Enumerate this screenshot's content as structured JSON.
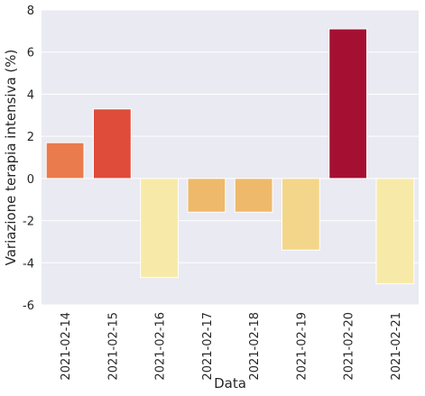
{
  "chart_data": {
    "type": "bar",
    "xlabel": "Data",
    "ylabel": "Variazione terapia intensiva (%)",
    "categories": [
      "2021-02-14",
      "2021-02-15",
      "2021-02-16",
      "2021-02-17",
      "2021-02-18",
      "2021-02-19",
      "2021-02-20",
      "2021-02-21"
    ],
    "values": [
      1.7,
      3.3,
      -4.7,
      -1.6,
      -1.6,
      -3.4,
      7.1,
      -5.0
    ],
    "bar_colors": [
      "#ea7b4c",
      "#df4c3a",
      "#f7eaa8",
      "#eeb96a",
      "#eeb96a",
      "#f3d68a",
      "#a51032",
      "#f7eaa8"
    ],
    "ylim": [
      -6,
      8
    ],
    "yticks": [
      -6,
      -4,
      -2,
      0,
      2,
      4,
      6,
      8
    ],
    "grid": true,
    "background": "#eaeaf2",
    "grid_color": "#ffffff"
  }
}
